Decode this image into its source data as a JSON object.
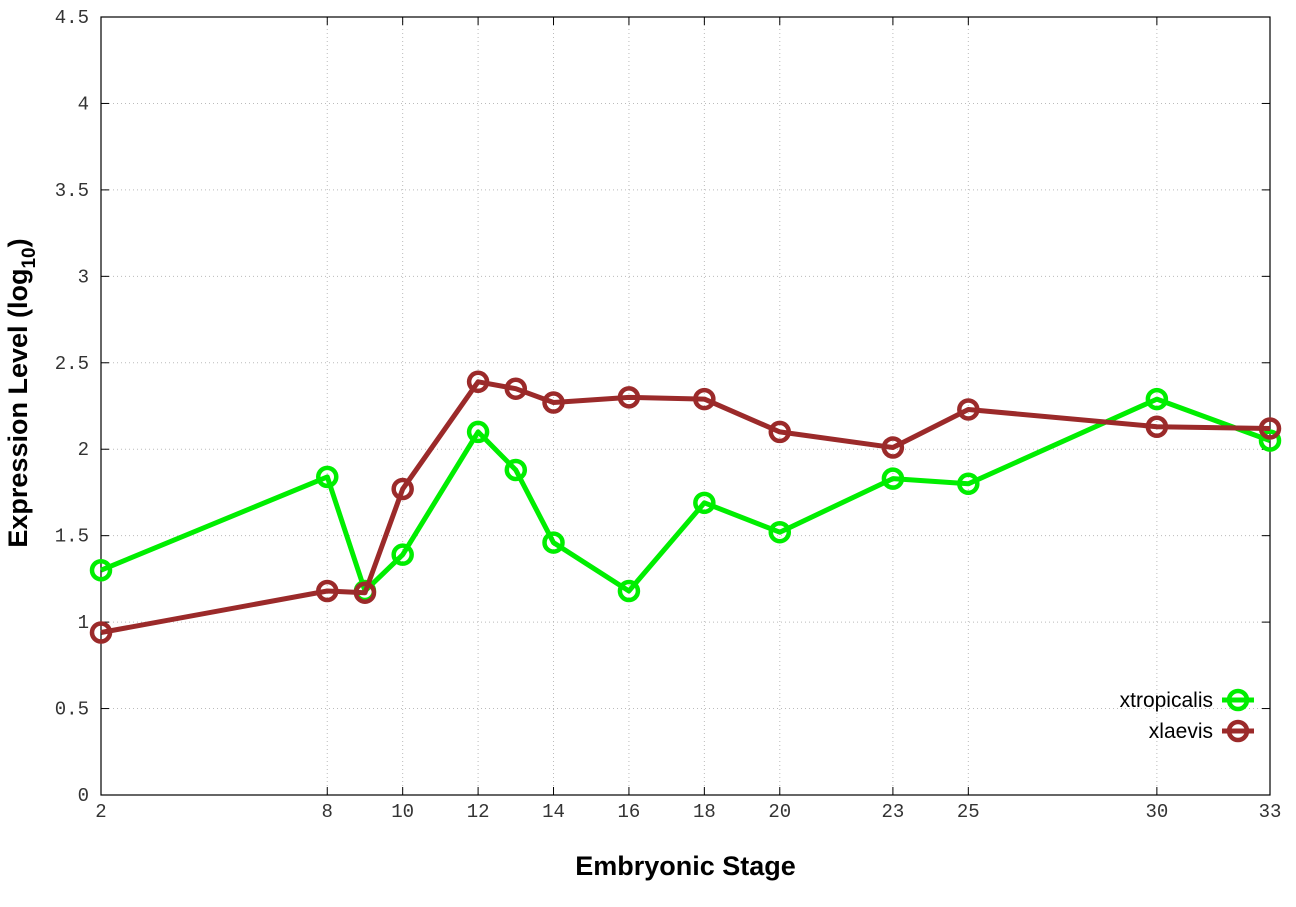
{
  "chart_data": {
    "type": "line",
    "title": "",
    "xlabel": "Embryonic Stage",
    "ylabel": "Expression Level (log",
    "ylabel_subscript": "10",
    "ylabel_suffix": ")",
    "x_ticks": [
      2,
      8,
      10,
      12,
      14,
      16,
      18,
      20,
      23,
      25,
      30,
      33
    ],
    "x_tick_labels": [
      "2",
      "8",
      "10",
      "12",
      "14",
      "16",
      "18",
      "20",
      "23",
      "25",
      "30",
      "33"
    ],
    "y_ticks": [
      0,
      0.5,
      1,
      1.5,
      2,
      2.5,
      3,
      3.5,
      4,
      4.5
    ],
    "y_tick_labels": [
      "0",
      "0.5",
      "1",
      "1.5",
      "2",
      "2.5",
      "3",
      "3.5",
      "4",
      "4.5"
    ],
    "xlim": [
      2,
      33
    ],
    "ylim": [
      0,
      4.5
    ],
    "grid": true,
    "legend_position": "bottom-right",
    "series": [
      {
        "name": "xtropicalis",
        "color": "#00ee00",
        "x": [
          2,
          8,
          9,
          10,
          12,
          13,
          14,
          16,
          18,
          20,
          23,
          25,
          30,
          33
        ],
        "y": [
          1.3,
          1.84,
          1.18,
          1.39,
          2.1,
          1.88,
          1.46,
          1.18,
          1.69,
          1.52,
          1.83,
          1.8,
          2.29,
          2.05
        ]
      },
      {
        "name": "xlaevis",
        "color": "#9b2a2a",
        "x": [
          2,
          8,
          9,
          10,
          12,
          13,
          14,
          16,
          18,
          20,
          23,
          25,
          30,
          33
        ],
        "y": [
          0.94,
          1.18,
          1.17,
          1.77,
          2.39,
          2.35,
          2.27,
          2.3,
          2.29,
          2.1,
          2.01,
          2.23,
          2.13,
          2.12
        ]
      }
    ]
  }
}
